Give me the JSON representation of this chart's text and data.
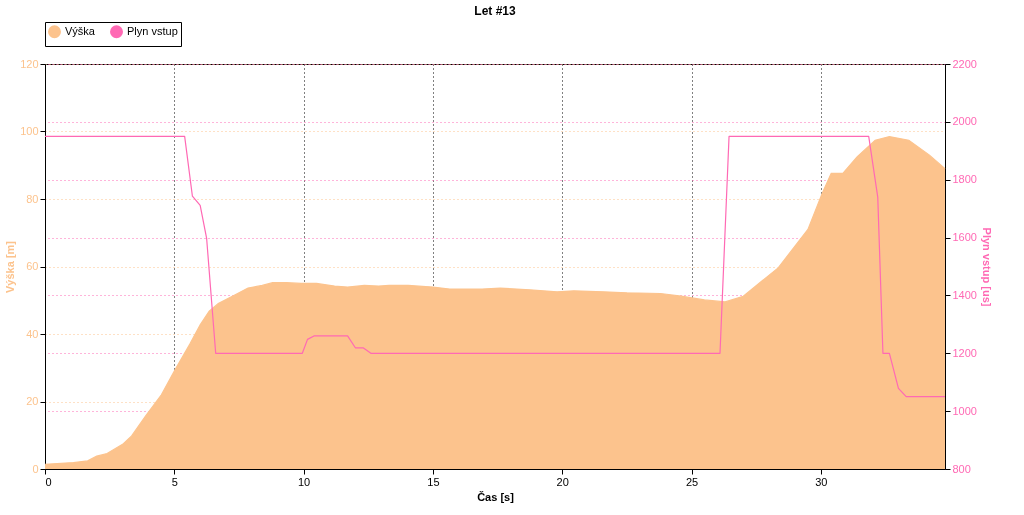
{
  "chart_data": {
    "type": "area",
    "title": "Let #13",
    "xlabel": "Čas [s]",
    "ylabel": "Výška [m]",
    "y2label": "Plyn vstup [us]",
    "xlim": [
      0,
      34.8
    ],
    "xticks": [
      0,
      5,
      10,
      15,
      20,
      25,
      30
    ],
    "ylim": [
      0,
      120
    ],
    "yticks": [
      0,
      20,
      40,
      60,
      80,
      100,
      120
    ],
    "y2lim": [
      800,
      2200
    ],
    "y2ticks": [
      800,
      1000,
      1200,
      1400,
      1600,
      1800,
      2000,
      2200
    ],
    "grid": true,
    "legend": "top left",
    "series": [
      {
        "name": "Výška",
        "color": "#fcc38d",
        "x": [
          0,
          1.1,
          1.65,
          2.0,
          2.4,
          3.0,
          3.35,
          3.9,
          4.5,
          5.0,
          5.6,
          6.0,
          6.35,
          6.7,
          7.3,
          7.85,
          8.4,
          8.8,
          9.35,
          9.9,
          10.5,
          11.2,
          11.7,
          12.35,
          12.9,
          13.3,
          14.05,
          15.0,
          15.65,
          16.9,
          17.6,
          18.75,
          19.8,
          20.45,
          21.6,
          22.5,
          23.8,
          24.6,
          25.5,
          26.3,
          27.0,
          28.35,
          29.5,
          30.05,
          30.4,
          30.85,
          31.4,
          32.1,
          32.65,
          33.4,
          34.2,
          34.8
        ],
        "values": [
          1.4,
          1.9,
          2.4,
          3.8,
          4.6,
          7.3,
          9.8,
          15.8,
          22,
          29,
          37,
          42.7,
          46.8,
          49,
          51.4,
          53.6,
          54.4,
          55.2,
          55.2,
          55,
          55,
          54.2,
          53.9,
          54.4,
          54.2,
          54.4,
          54.4,
          53.9,
          53.3,
          53.3,
          53.6,
          53.1,
          52.5,
          52.8,
          52.5,
          52.2,
          52,
          51.2,
          50.1,
          49.5,
          51.2,
          59.6,
          71,
          81.6,
          87.6,
          87.6,
          92.5,
          97.4,
          98.5,
          97.4,
          93,
          89
        ]
      },
      {
        "name": "Plyn vstup",
        "type": "line",
        "axis": "y2",
        "color": "#ff69b4",
        "x": [
          0,
          5.4,
          5.7,
          6.0,
          6.25,
          6.6,
          9.95,
          10.15,
          10.4,
          11.7,
          12.0,
          12.3,
          12.6,
          26.1,
          26.45,
          31.85,
          32.2,
          32.4,
          32.65,
          33.0,
          33.3,
          34.8
        ],
        "values": [
          1950,
          1950,
          1743,
          1711,
          1597,
          1200,
          1200,
          1248,
          1260,
          1260,
          1219,
          1219,
          1200,
          1200,
          1950,
          1950,
          1740,
          1200,
          1200,
          1079,
          1050,
          1050
        ]
      }
    ]
  }
}
